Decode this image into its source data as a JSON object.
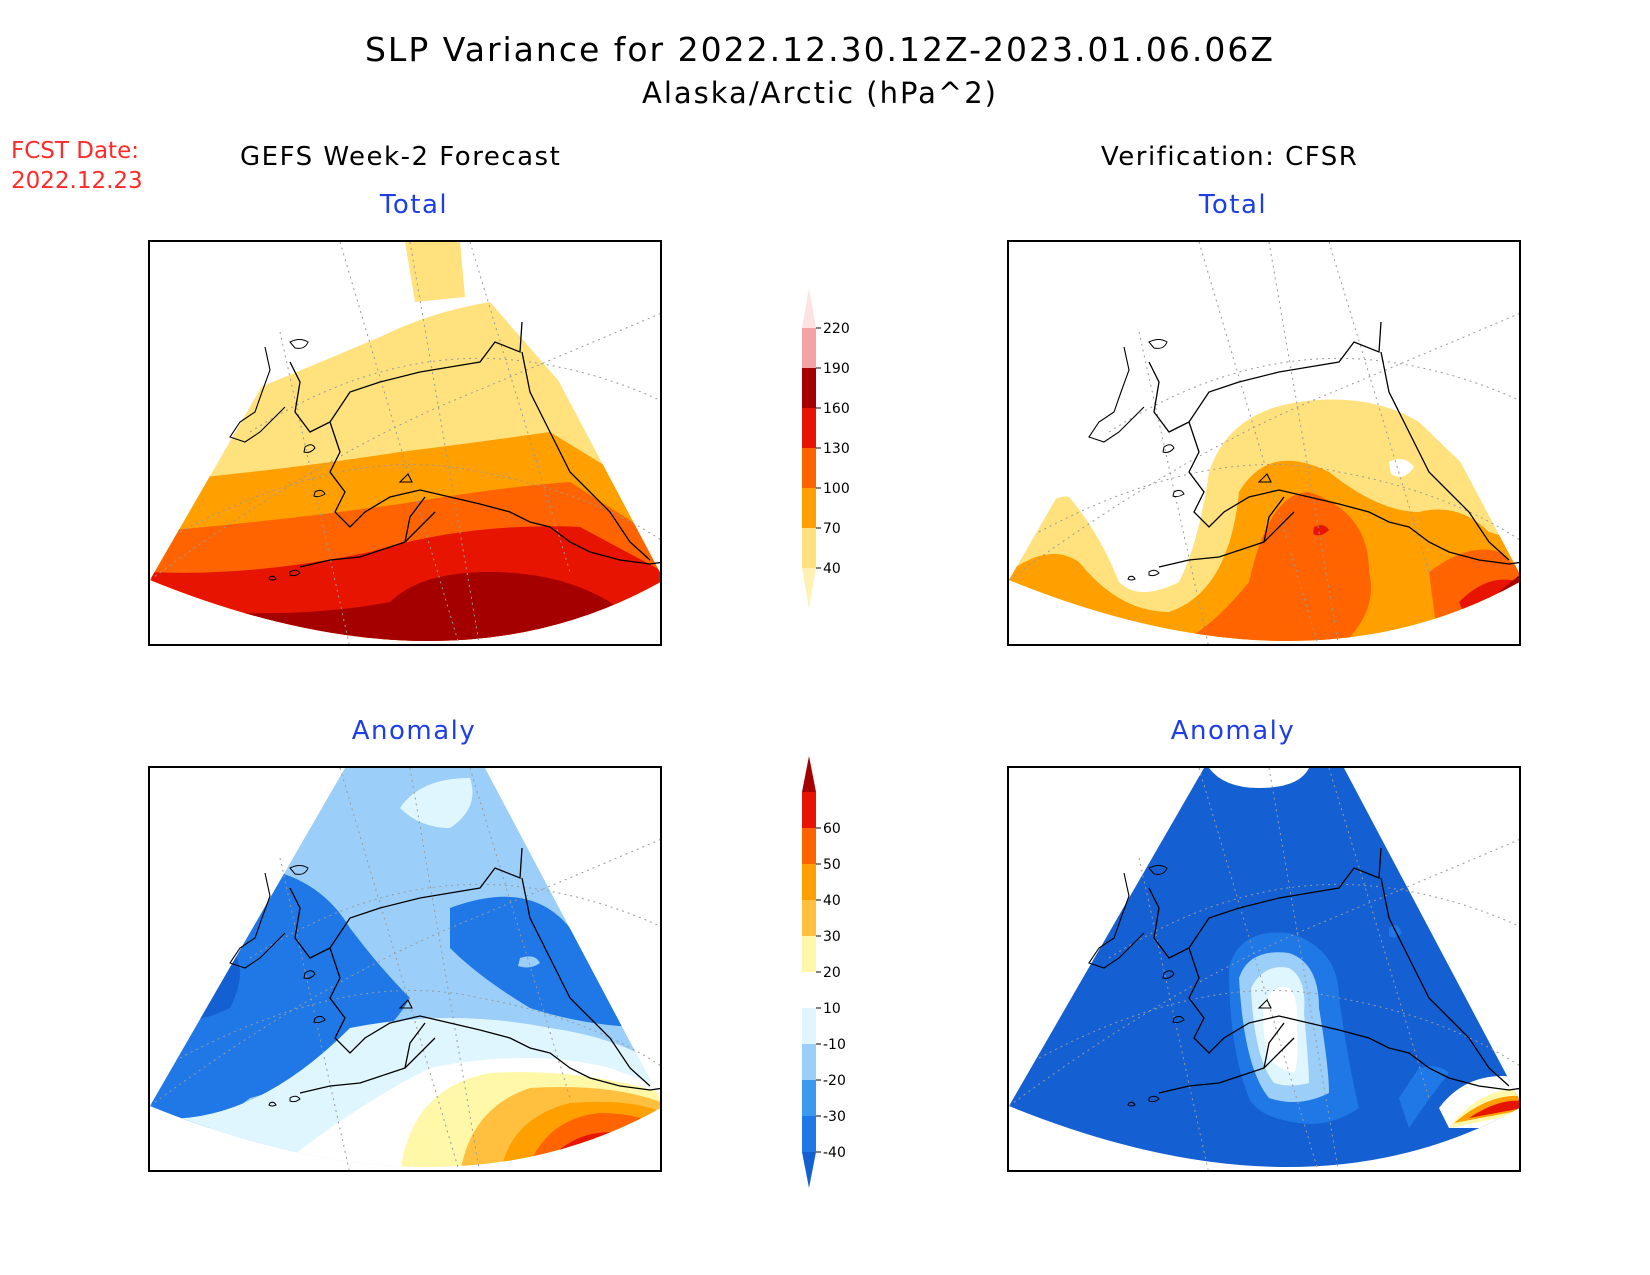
{
  "title": {
    "line1": "SLP Variance for 2022.12.30.12Z-2023.01.06.06Z",
    "line2": "Alaska/Arctic (hPa^2)"
  },
  "forecast_date": {
    "label": "FCST Date:",
    "value": "2022.12.23"
  },
  "columns": {
    "left": "GEFS Week-2 Forecast",
    "right": "Verification: CFSR"
  },
  "panels": {
    "fcst_total": "Total",
    "verif_total": "Total",
    "fcst_anomaly": "Anomaly",
    "verif_anomaly": "Anomaly"
  },
  "colorbars": {
    "total": {
      "levels": [
        "40",
        "70",
        "100",
        "130",
        "160",
        "190",
        "220"
      ],
      "colors": [
        "#fff0b4",
        "#ffe27e",
        "#ff9f00",
        "#ff6400",
        "#e61400",
        "#a50000",
        "#f4a3a3",
        "#fde2e2"
      ]
    },
    "anomaly": {
      "levels": [
        "-40",
        "-30",
        "-20",
        "-10",
        "10",
        "20",
        "30",
        "40",
        "50",
        "60"
      ],
      "colors": [
        "#1460d2",
        "#1f78e6",
        "#3c9aee",
        "#9ccefa",
        "#e0f6ff",
        "#ffffff",
        "#fff8a8",
        "#ffc040",
        "#ff9f00",
        "#ff6400",
        "#e61400",
        "#a50000"
      ]
    }
  }
}
